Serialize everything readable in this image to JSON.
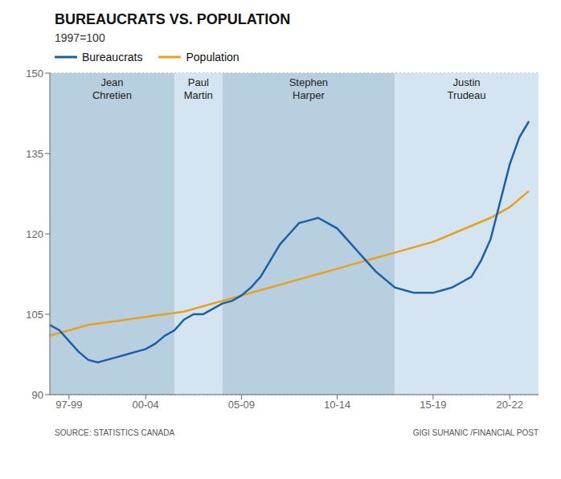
{
  "chart_data": {
    "type": "line",
    "title": "BUREAUCRATS VS. POPULATION",
    "subtitle": "1997=100",
    "annotations": [
      "SOURCE: STATISTICS CANADA",
      "GIGI SUHANIC /FINANCIAL POST"
    ],
    "xlim": [
      1997,
      2022.5
    ],
    "xticks": [
      {
        "value": 1998,
        "label": "97-99"
      },
      {
        "value": 2002,
        "label": "00-04"
      },
      {
        "value": 2007,
        "label": "05-09"
      },
      {
        "value": 2012,
        "label": "10-14"
      },
      {
        "value": 2017,
        "label": "15-19"
      },
      {
        "value": 2021,
        "label": "20-22"
      }
    ],
    "ylim": [
      90,
      150
    ],
    "yticks": [
      90,
      105,
      120,
      135,
      150
    ],
    "grid": true,
    "regions": [
      {
        "start": 1997,
        "end": 2003.5,
        "label": "Jean\nChretien",
        "color": "#b8cfe0"
      },
      {
        "start": 2003.5,
        "end": 2006.0,
        "label": "Paul\nMartin",
        "color": "#d4e4f0"
      },
      {
        "start": 2006.0,
        "end": 2015.0,
        "label": "Stephen\nHarper",
        "color": "#b8cfe0"
      },
      {
        "start": 2015.0,
        "end": 2022.5,
        "label": "Justin\nTrudeau",
        "color": "#d4e4f0"
      }
    ],
    "series": [
      {
        "name": "Bureaucrats",
        "color": "#1a5fa8",
        "x": [
          1997,
          1997.5,
          1998,
          1998.5,
          1999,
          1999.5,
          2000,
          2000.5,
          2001,
          2001.5,
          2002,
          2002.5,
          2003,
          2003.5,
          2004,
          2004.5,
          2005,
          2005.25,
          2005.5,
          2006,
          2006.5,
          2007,
          2007.5,
          2008,
          2008.5,
          2009,
          2009.5,
          2010,
          2010.5,
          2011,
          2011.5,
          2012,
          2012.5,
          2013,
          2013.5,
          2014,
          2014.5,
          2015,
          2015.5,
          2016,
          2016.5,
          2017,
          2017.5,
          2018,
          2018.5,
          2019,
          2019.5,
          2020,
          2020.5,
          2021,
          2021.5,
          2022
        ],
        "values": [
          103,
          102,
          100,
          98,
          96.5,
          96,
          96.5,
          97,
          97.5,
          98,
          98.5,
          99.5,
          101,
          102,
          104,
          105,
          105,
          105.5,
          106,
          107,
          107.5,
          108.5,
          110,
          112,
          115,
          118,
          120,
          122,
          122.5,
          123,
          122,
          121,
          119,
          117,
          115,
          113,
          111.5,
          110,
          109.5,
          109,
          109,
          109,
          109.5,
          110,
          111,
          112,
          115,
          119,
          126,
          133,
          138,
          141
        ]
      },
      {
        "name": "Population",
        "color": "#e8a020",
        "x": [
          1997,
          1998,
          1999,
          2000,
          2001,
          2002,
          2003,
          2004,
          2005,
          2006,
          2007,
          2008,
          2009,
          2010,
          2011,
          2012,
          2013,
          2014,
          2015,
          2016,
          2017,
          2018,
          2019,
          2020,
          2021,
          2022
        ],
        "values": [
          101,
          102,
          103,
          103.5,
          104,
          104.5,
          105,
          105.5,
          106.5,
          107.5,
          108.5,
          109.5,
          110.5,
          111.5,
          112.5,
          113.5,
          114.5,
          115.5,
          116.5,
          117.5,
          118.5,
          120,
          121.5,
          123,
          125,
          128
        ]
      }
    ]
  }
}
